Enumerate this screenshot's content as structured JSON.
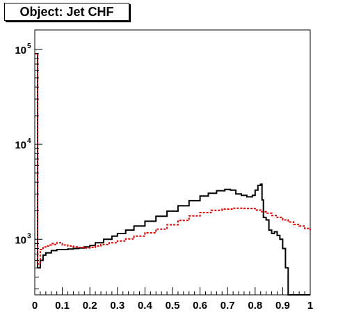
{
  "title": "Object: Jet CHF",
  "chart_data": {
    "type": "line",
    "title": "Object: Jet CHF",
    "xlabel": "",
    "ylabel": "",
    "xlim": [
      0,
      1
    ],
    "ylim": [
      260,
      160000
    ],
    "log_y": true,
    "grid": false,
    "x_ticks": [
      "0",
      "0.1",
      "0.2",
      "0.3",
      "0.4",
      "0.5",
      "0.6",
      "0.7",
      "0.8",
      "0.9",
      "1"
    ],
    "y_ticks": [
      {
        "value": 1000,
        "base": "10",
        "exp": "3"
      },
      {
        "value": 10000,
        "base": "10",
        "exp": "4"
      },
      {
        "value": 100000,
        "base": "10",
        "exp": "5"
      }
    ],
    "series": [
      {
        "color": "#000000",
        "style": "solid",
        "x": [
          0,
          0.01,
          0.02,
          0.03,
          0.04,
          0.06,
          0.08,
          0.1,
          0.12,
          0.14,
          0.16,
          0.18,
          0.2,
          0.22,
          0.25,
          0.28,
          0.3,
          0.33,
          0.36,
          0.4,
          0.44,
          0.48,
          0.52,
          0.56,
          0.6,
          0.63,
          0.66,
          0.69,
          0.71,
          0.73,
          0.75,
          0.77,
          0.79,
          0.8,
          0.81,
          0.82,
          0.825,
          0.83,
          0.84,
          0.85,
          0.86,
          0.87,
          0.88,
          0.89,
          0.9,
          0.91,
          0.92,
          0.93,
          1.0
        ],
        "y": [
          90000,
          500,
          600,
          680,
          720,
          760,
          780,
          780,
          790,
          800,
          810,
          830,
          860,
          920,
          1000,
          1080,
          1150,
          1250,
          1380,
          1550,
          1750,
          1980,
          2250,
          2550,
          2850,
          3050,
          3250,
          3350,
          3300,
          3000,
          2900,
          2800,
          2900,
          3300,
          3700,
          3800,
          2600,
          1700,
          1600,
          1250,
          1150,
          1200,
          1100,
          1000,
          800,
          500,
          200,
          200,
          200
        ]
      },
      {
        "color": "#dd0000",
        "style": "dashed",
        "x": [
          0,
          0.01,
          0.02,
          0.03,
          0.04,
          0.05,
          0.06,
          0.07,
          0.08,
          0.1,
          0.12,
          0.14,
          0.16,
          0.18,
          0.2,
          0.22,
          0.24,
          0.27,
          0.3,
          0.33,
          0.36,
          0.4,
          0.44,
          0.48,
          0.52,
          0.56,
          0.6,
          0.64,
          0.68,
          0.72,
          0.76,
          0.8,
          0.82,
          0.84,
          0.86,
          0.88,
          0.9,
          0.92,
          0.94,
          0.96,
          0.98,
          1.0
        ],
        "y": [
          90000,
          550,
          780,
          830,
          850,
          870,
          900,
          880,
          920,
          870,
          850,
          830,
          820,
          810,
          820,
          850,
          880,
          920,
          960,
          1010,
          1080,
          1170,
          1280,
          1420,
          1580,
          1760,
          1910,
          2020,
          2080,
          2120,
          2110,
          2030,
          1950,
          1880,
          1780,
          1700,
          1600,
          1520,
          1430,
          1380,
          1300,
          1250
        ]
      }
    ]
  }
}
